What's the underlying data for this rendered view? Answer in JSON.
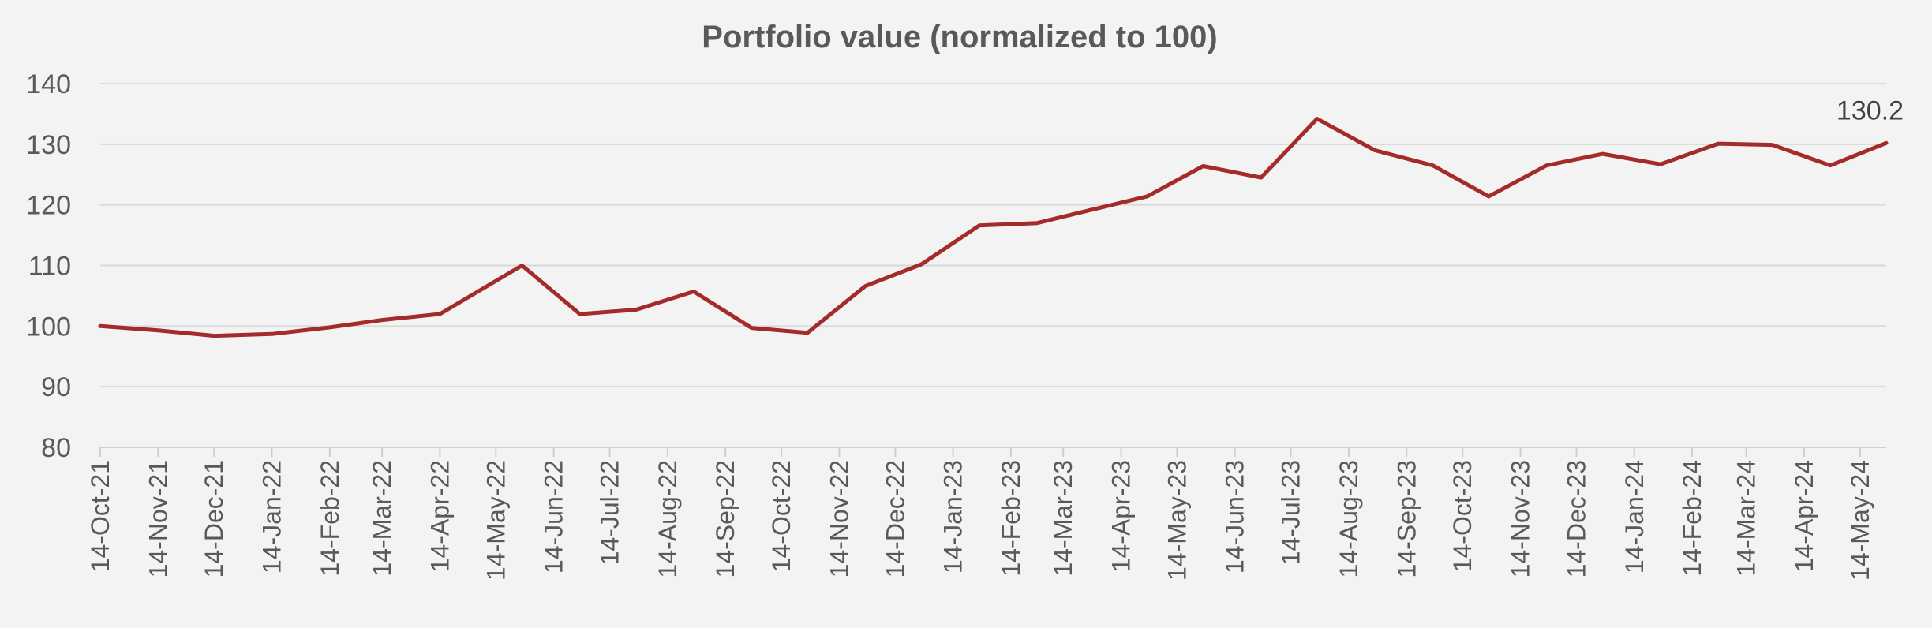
{
  "chart_data": {
    "type": "line",
    "title": "Portfolio value (normalized to 100)",
    "xlabel": "",
    "ylabel": "",
    "ylim": [
      80,
      140
    ],
    "yticks": [
      80,
      90,
      100,
      110,
      120,
      130,
      140
    ],
    "grid": true,
    "legend": "none",
    "x_tick_labels": [
      "14-Oct-21",
      "14-Nov-21",
      "14-Dec-21",
      "14-Jan-22",
      "14-Feb-22",
      "14-Mar-22",
      "14-Apr-22",
      "14-May-22",
      "14-Jun-22",
      "14-Jul-22",
      "14-Aug-22",
      "14-Sep-22",
      "14-Oct-22",
      "14-Nov-22",
      "14-Dec-22",
      "14-Jan-23",
      "14-Feb-23",
      "14-Mar-23",
      "14-Apr-23",
      "14-May-23",
      "14-Jun-23",
      "14-Jul-23",
      "14-Aug-23",
      "14-Sep-23",
      "14-Oct-23",
      "14-Nov-23",
      "14-Dec-23",
      "14-Jan-24",
      "14-Feb-24",
      "14-Mar-24",
      "14-Apr-24",
      "14-May-24"
    ],
    "series": [
      {
        "color": "#a52a2a",
        "points": [
          {
            "x": "2021-10-14",
            "y": 100.0
          },
          {
            "x": "2021-11-14",
            "y": 99.3
          },
          {
            "x": "2021-12-14",
            "y": 98.4
          },
          {
            "x": "2022-01-14",
            "y": 98.7
          },
          {
            "x": "2022-02-14",
            "y": 99.8
          },
          {
            "x": "2022-03-14",
            "y": 101.0
          },
          {
            "x": "2022-04-14",
            "y": 102.0
          },
          {
            "x": "2022-05-28",
            "y": 110.0
          },
          {
            "x": "2022-06-28",
            "y": 102.0
          },
          {
            "x": "2022-07-28",
            "y": 102.7
          },
          {
            "x": "2022-08-28",
            "y": 105.7
          },
          {
            "x": "2022-09-28",
            "y": 99.7
          },
          {
            "x": "2022-10-28",
            "y": 98.9
          },
          {
            "x": "2022-11-28",
            "y": 106.6
          },
          {
            "x": "2022-12-28",
            "y": 110.2
          },
          {
            "x": "2023-01-28",
            "y": 116.6
          },
          {
            "x": "2023-02-28",
            "y": 117.0
          },
          {
            "x": "2023-03-28",
            "y": 119.1
          },
          {
            "x": "2023-04-28",
            "y": 121.4
          },
          {
            "x": "2023-05-28",
            "y": 126.4
          },
          {
            "x": "2023-06-28",
            "y": 124.5
          },
          {
            "x": "2023-07-28",
            "y": 134.2
          },
          {
            "x": "2023-08-28",
            "y": 129.0
          },
          {
            "x": "2023-09-28",
            "y": 126.5
          },
          {
            "x": "2023-10-28",
            "y": 121.4
          },
          {
            "x": "2023-11-28",
            "y": 126.5
          },
          {
            "x": "2023-12-28",
            "y": 128.4
          },
          {
            "x": "2024-01-28",
            "y": 126.7
          },
          {
            "x": "2024-02-28",
            "y": 130.1
          },
          {
            "x": "2024-03-28",
            "y": 129.9
          },
          {
            "x": "2024-04-28",
            "y": 126.5
          },
          {
            "x": "2024-05-28",
            "y": 130.2
          }
        ]
      }
    ],
    "data_labels": [
      {
        "x": "2024-05-28",
        "y": 130.2,
        "text": "130.2"
      }
    ]
  }
}
